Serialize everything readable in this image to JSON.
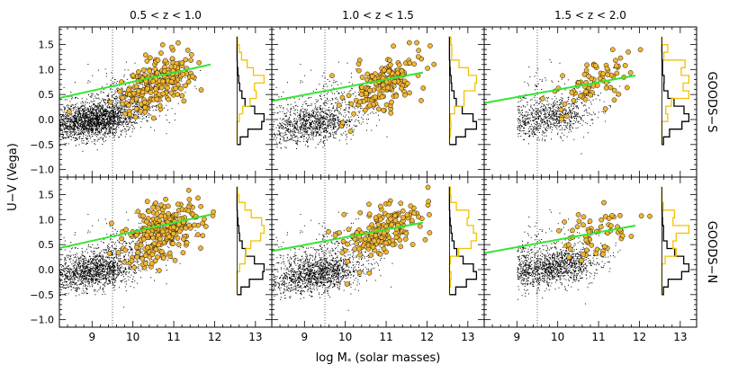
{
  "chart_data": {
    "type": "scatter",
    "xlabel": "log M",
    "xlabel_sub": "*",
    "xlabel_suffix": "(solar masses)",
    "ylabel": "U−V (Vega)",
    "xlim": [
      8.2,
      13.4
    ],
    "ylim": [
      -1.15,
      1.85
    ],
    "x_ticks": [
      "9",
      "10",
      "11",
      "12",
      "13"
    ],
    "x_tick_values": [
      9,
      10,
      11,
      12,
      13
    ],
    "y_ticks": [
      "−1.0",
      "−0.5",
      "0.0",
      "0.5",
      "1.0",
      "1.5"
    ],
    "y_tick_values": [
      -1.0,
      -0.5,
      0.0,
      0.5,
      1.0,
      1.5
    ],
    "mass_limit_x": 9.5,
    "columns": [
      "0.5 < z < 1.0",
      "1.0 < z < 1.5",
      "1.5 < z < 2.0"
    ],
    "rows": [
      "GOODS−S",
      "GOODS−N"
    ],
    "series": [
      {
        "name": "field galaxies",
        "style": "black dots",
        "color": "#000000"
      },
      {
        "name": "selected sample",
        "style": "orange circles",
        "color": "#f2b632"
      },
      {
        "name": "red-sequence division",
        "style": "line",
        "color": "#33e633"
      },
      {
        "name": "color histograms",
        "style": "steps",
        "colors": [
          "#000000",
          "#f2c200"
        ]
      }
    ],
    "divider_lines": [
      {
        "x": [
          8.2,
          11.9
        ],
        "y": [
          0.43,
          1.1
        ]
      },
      {
        "x": [
          8.2,
          11.9
        ],
        "y": [
          0.37,
          0.94
        ]
      },
      {
        "x": [
          8.2,
          11.9
        ],
        "y": [
          0.33,
          0.88
        ]
      }
    ],
    "panels": [
      {
        "row": 0,
        "col": 0,
        "field_n": 2600,
        "field_center": [
          9.0,
          -0.02
        ],
        "sample_n": 210,
        "sample_center": [
          10.6,
          0.72
        ]
      },
      {
        "row": 0,
        "col": 1,
        "field_n": 1300,
        "field_center": [
          9.2,
          -0.08
        ],
        "sample_n": 170,
        "sample_center": [
          10.9,
          0.68
        ]
      },
      {
        "row": 0,
        "col": 2,
        "field_n": 900,
        "field_center": [
          9.8,
          0.05
        ],
        "sample_n": 75,
        "sample_center": [
          10.9,
          0.75
        ]
      },
      {
        "row": 1,
        "col": 0,
        "field_n": 4200,
        "field_center": [
          9.0,
          -0.02
        ],
        "sample_n": 270,
        "sample_center": [
          10.7,
          0.73
        ]
      },
      {
        "row": 1,
        "col": 1,
        "field_n": 1700,
        "field_center": [
          9.3,
          -0.08
        ],
        "sample_n": 170,
        "sample_center": [
          10.9,
          0.72
        ]
      },
      {
        "row": 1,
        "col": 2,
        "field_n": 1400,
        "field_center": [
          9.9,
          0.05
        ],
        "sample_n": 60,
        "sample_center": [
          11.0,
          0.72
        ]
      }
    ]
  }
}
